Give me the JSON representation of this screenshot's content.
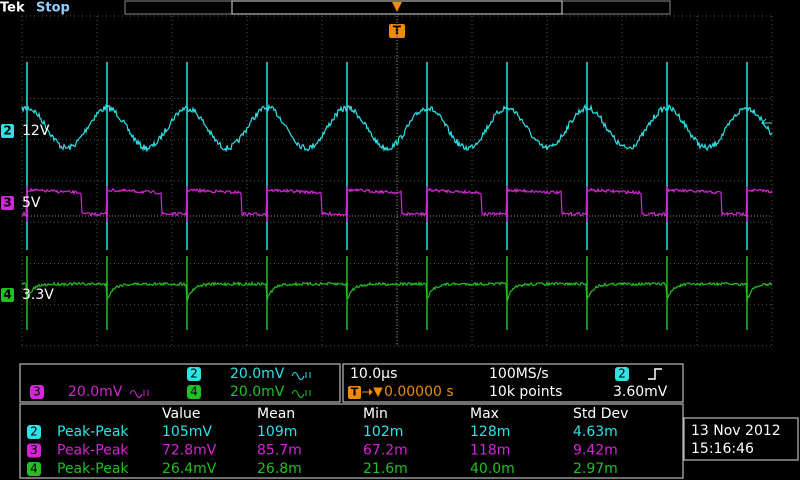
{
  "header": {
    "brand": "Tek",
    "state": "Stop",
    "trigger_marker": "T"
  },
  "channels": [
    {
      "number": "2",
      "label": "12V"
    },
    {
      "number": "3",
      "label": "5V"
    },
    {
      "number": "4",
      "label": "3.3V"
    }
  ],
  "vertical": [
    {
      "number": "2",
      "scale": "20.0mV"
    },
    {
      "number": "3",
      "scale": "20.0mV"
    },
    {
      "number": "4",
      "scale": "20.0mV"
    }
  ],
  "horizontal": {
    "timebase": "10.0µs",
    "sample_rate": "100MS/s",
    "trigger_icon": "T",
    "position": "0.00000 s",
    "record": "10k points",
    "trigger_channel": "2",
    "trigger_level": "3.60mV"
  },
  "measurements": {
    "headers": [
      "Value",
      "Mean",
      "Min",
      "Max",
      "Std Dev"
    ],
    "rows": [
      [
        "2",
        "Peak-Peak",
        "105mV",
        "109m",
        "102m",
        "128m",
        "4.63m"
      ],
      [
        "3",
        "Peak-Peak",
        "72.8mV",
        "85.7m",
        "67.2m",
        "118m",
        "9.42m"
      ],
      [
        "4",
        "Peak-Peak",
        "26.4mV",
        "26.8m",
        "21.6m",
        "40.0m",
        "2.97m"
      ]
    ]
  },
  "datetime": {
    "date": "13 Nov 2012",
    "time": "15:16:46"
  }
}
